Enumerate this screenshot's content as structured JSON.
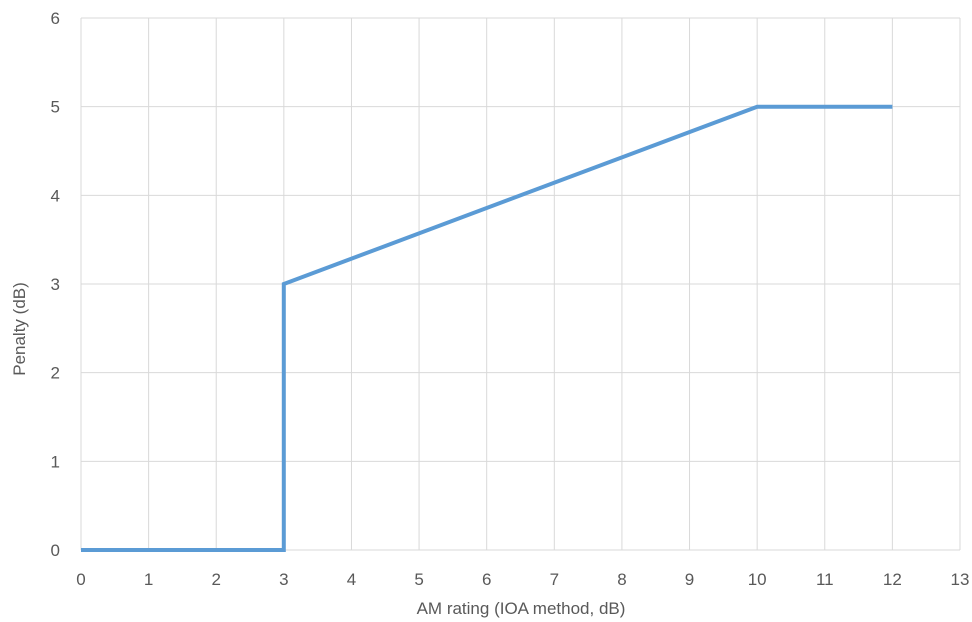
{
  "chart_data": {
    "type": "line",
    "title": "",
    "xlabel": "AM rating (IOA method, dB)",
    "ylabel": "Penalty (dB)",
    "xlim": [
      0,
      13
    ],
    "ylim": [
      0,
      6
    ],
    "x_ticks": [
      "0",
      "1",
      "2",
      "3",
      "4",
      "5",
      "6",
      "7",
      "8",
      "9",
      "10",
      "11",
      "12",
      "13"
    ],
    "y_ticks": [
      "0",
      "1",
      "2",
      "3",
      "4",
      "5",
      "6"
    ],
    "grid": true,
    "legend": "none",
    "series": [
      {
        "color": "#5b9bd5",
        "points": [
          {
            "x": 0,
            "y": 0
          },
          {
            "x": 3,
            "y": 0
          },
          {
            "x": 3,
            "y": 3
          },
          {
            "x": 10,
            "y": 5
          },
          {
            "x": 12,
            "y": 5
          }
        ]
      }
    ]
  }
}
